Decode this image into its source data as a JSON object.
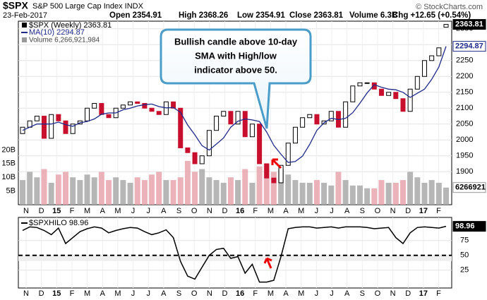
{
  "chart_data": [
    {
      "type": "candlestick",
      "title": "$SPX",
      "subtitle": "S&P 500 Large Cap Index INDX",
      "date": "23-Feb-2017",
      "stats": [
        "Open 2354.91",
        "High 2368.26",
        "Low 2354.91",
        "Close 2363.81",
        "Volume 6.3B",
        "Chg +12.65 (+0.54%)"
      ],
      "source": "© StockCharts.com",
      "legend": "$SPX (Weekly) 2363.81",
      "xticks": [
        "N",
        "D",
        "15",
        "F",
        "M",
        "A",
        "M",
        "J",
        "J",
        "A",
        "S",
        "O",
        "N",
        "D",
        "16",
        "F",
        "M",
        "A",
        "M",
        "J",
        "J",
        "A",
        "S",
        "O",
        "N",
        "D",
        "17",
        "F"
      ],
      "open": [
        2020,
        2040,
        2060,
        2075,
        2005,
        2080,
        2060,
        2020,
        2050,
        2060,
        2100,
        2115,
        2080,
        2070,
        2100,
        2110,
        2120,
        2115,
        2100,
        2090,
        2080,
        2120,
        2100,
        1975,
        1960,
        1925,
        1950,
        2030,
        2075,
        2090,
        2050,
        2090,
        2010,
        2050,
        1925,
        1880,
        1865,
        1920,
        1990,
        2040,
        2070,
        2080,
        2050,
        2060,
        2090,
        2040,
        2120,
        2170,
        2180,
        2180,
        2160,
        2140,
        2150,
        2130,
        2090,
        2160,
        2200,
        2250,
        2265,
        2354.91
      ],
      "close": [
        2040,
        2060,
        2075,
        2005,
        2080,
        2060,
        2020,
        2050,
        2060,
        2100,
        2115,
        2080,
        2070,
        2100,
        2110,
        2120,
        2115,
        2100,
        2090,
        2080,
        2120,
        2100,
        1975,
        1960,
        1925,
        1950,
        2030,
        2075,
        2090,
        2050,
        2090,
        2010,
        2050,
        1925,
        1880,
        1865,
        1920,
        1990,
        2040,
        2070,
        2080,
        2050,
        2060,
        2090,
        2040,
        2120,
        2170,
        2180,
        2180,
        2160,
        2140,
        2150,
        2130,
        2090,
        2160,
        2200,
        2250,
        2265,
        2290,
        2363.81
      ],
      "up_color": "#ffffff",
      "down_color": "#c8102e",
      "ma": {
        "name": "MA(10) 2294.87",
        "color": "#1f2a8a",
        "values": [
          2030,
          2040,
          2050,
          2050,
          2050,
          2056,
          2048,
          2043,
          2054,
          2058,
          2066,
          2081,
          2085,
          2085,
          2095,
          2100,
          2107,
          2111,
          2113,
          2105,
          2101,
          2102,
          2087,
          2047,
          2016,
          1982,
          1968,
          1987,
          2006,
          2040,
          2059,
          2066,
          2063,
          2058,
          2025,
          1983,
          1955,
          1929,
          1932,
          1949,
          1986,
          2030,
          2054,
          2068,
          2064,
          2068,
          2086,
          2116,
          2148,
          2174,
          2166,
          2160,
          2158,
          2150,
          2134,
          2147,
          2160,
          2191,
          2230,
          2294.87
        ]
      },
      "volume": {
        "name": "Volume 6,266,921,984",
        "up_color": "#a9a9a9",
        "down_color": "#e8a5ad",
        "values": [
          9,
          12,
          10,
          13,
          8,
          11,
          12,
          10,
          9,
          11,
          10,
          12,
          9,
          10,
          9,
          8,
          10,
          9,
          11,
          12,
          9,
          9,
          10,
          16,
          12,
          13,
          10,
          9,
          8,
          10,
          9,
          13,
          8,
          14,
          15,
          12,
          13,
          11,
          9,
          8,
          8,
          9,
          8,
          7,
          12,
          9,
          7,
          7,
          6,
          6,
          9,
          8,
          8,
          9,
          12,
          10,
          8,
          9,
          8,
          6.266921984
        ],
        "ylim": [
          0,
          67
        ],
        "yticks": [
          {
            "value": 5,
            "label": "5B"
          },
          {
            "value": 10,
            "label": "10B"
          },
          {
            "value": 15,
            "label": "15B"
          },
          {
            "value": 20,
            "label": "20B"
          }
        ],
        "last_label": "6266921"
      },
      "ylim": [
        1796,
        2374
      ],
      "yticks": [
        1900,
        1950,
        2000,
        2050,
        2100,
        2150,
        2200,
        2250,
        2300,
        2350
      ],
      "last_labels": [
        "2363.81",
        "2294.87"
      ],
      "annotation": [
        "Bullish candle above 10-day",
        "SMA with High/low",
        "indicator above 50."
      ]
    },
    {
      "type": "line",
      "name": "$SPXHILO 98.96",
      "color": "#000000",
      "values": [
        92,
        98,
        97,
        92,
        85,
        96,
        70,
        80,
        90,
        95,
        98,
        96,
        88,
        92,
        95,
        97,
        96,
        90,
        85,
        88,
        93,
        80,
        40,
        15,
        10,
        30,
        50,
        60,
        62,
        45,
        48,
        20,
        35,
        5,
        5,
        8,
        48,
        95,
        97,
        98,
        98,
        96,
        97,
        98,
        96,
        98,
        98,
        98,
        97,
        95,
        96,
        97,
        80,
        70,
        88,
        97,
        98,
        97,
        96,
        98.96
      ],
      "ylim": [
        -5,
        114
      ],
      "yticks": [
        25,
        50,
        75
      ],
      "ref_line": 50,
      "last_label": "98.96"
    }
  ]
}
